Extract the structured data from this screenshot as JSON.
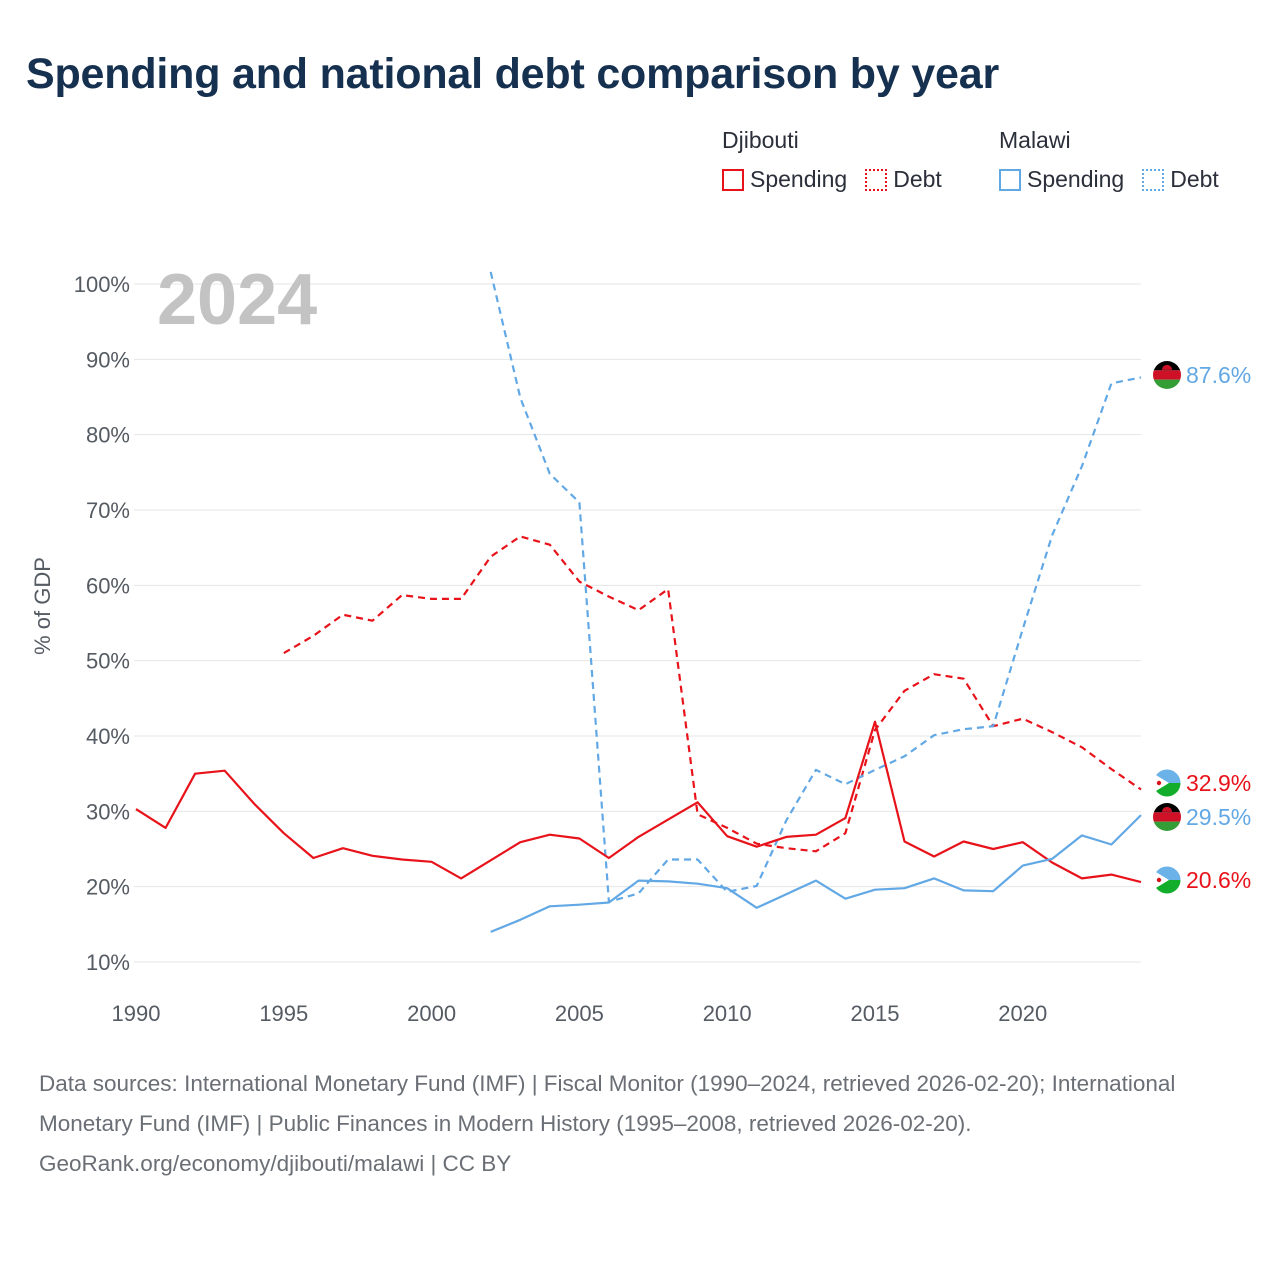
{
  "title": "Spending and national debt comparison by year",
  "legend": [
    {
      "country": "Djibouti",
      "color": "#e8131a",
      "items": [
        {
          "label": "Spending",
          "style": "solid"
        },
        {
          "label": "Debt",
          "style": "dotted"
        }
      ]
    },
    {
      "country": "Malawi",
      "color": "#62a8e5",
      "items": [
        {
          "label": "Spending",
          "style": "solid"
        },
        {
          "label": "Debt",
          "style": "dotted"
        }
      ]
    }
  ],
  "chart_data": {
    "type": "line",
    "year_label": "2024",
    "ylabel": "% of GDP",
    "xlabel": "",
    "xlim": [
      1990,
      2024
    ],
    "ylim": [
      10,
      100
    ],
    "x_ticks": [
      1990,
      1995,
      2000,
      2005,
      2010,
      2015,
      2020
    ],
    "y_ticks": [
      10,
      20,
      30,
      40,
      50,
      60,
      70,
      80,
      90,
      100
    ],
    "y_tick_labels": [
      "10%",
      "20%",
      "30%",
      "40%",
      "50%",
      "60%",
      "70%",
      "80%",
      "90%",
      "100%"
    ],
    "series": [
      {
        "name": "Djibouti Spending",
        "country": "Djibouti",
        "kind": "spending",
        "color": "#e8131a",
        "dashed": false,
        "end_label": "20.6%",
        "x": [
          1990,
          1991,
          1992,
          1993,
          1994,
          1995,
          1996,
          1997,
          1998,
          1999,
          2000,
          2001,
          2002,
          2003,
          2004,
          2005,
          2006,
          2007,
          2008,
          2009,
          2010,
          2011,
          2012,
          2013,
          2014,
          2015,
          2016,
          2017,
          2018,
          2019,
          2020,
          2021,
          2022,
          2023,
          2024
        ],
        "values": [
          30.3,
          27.8,
          35,
          35.4,
          31,
          27.1,
          23.8,
          25.1,
          24.1,
          23.6,
          23.3,
          21.1,
          23.5,
          25.9,
          26.9,
          26.4,
          23.8,
          26.6,
          28.9,
          31.2,
          26.7,
          25.3,
          26.6,
          26.9,
          29.1,
          41.9,
          26,
          24,
          26,
          25,
          25.9,
          23.2,
          21.1,
          21.6,
          20.6
        ]
      },
      {
        "name": "Djibouti Debt",
        "country": "Djibouti",
        "kind": "debt",
        "color": "#e8131a",
        "dashed": true,
        "end_label": "32.9%",
        "x": [
          1995,
          1996,
          1997,
          1998,
          1999,
          2000,
          2001,
          2002,
          2003,
          2004,
          2005,
          2006,
          2007,
          2008,
          2009,
          2010,
          2011,
          2012,
          2013,
          2014,
          2015,
          2016,
          2017,
          2018,
          2019,
          2020,
          2021,
          2022,
          2023,
          2024
        ],
        "values": [
          51,
          53.3,
          56.1,
          55.3,
          58.7,
          58.2,
          58.2,
          63.8,
          66.5,
          65.4,
          60.5,
          58.5,
          56.7,
          59.5,
          29.6,
          27.8,
          25.7,
          25.1,
          24.7,
          27.1,
          40.8,
          46,
          48.2,
          47.6,
          41.3,
          42.3,
          40.5,
          38.5,
          35.6,
          32.9
        ]
      },
      {
        "name": "Malawi Spending",
        "country": "Malawi",
        "kind": "spending",
        "color": "#62a8e5",
        "dashed": false,
        "end_label": "29.5%",
        "x": [
          2002,
          2003,
          2004,
          2005,
          2006,
          2007,
          2008,
          2009,
          2010,
          2011,
          2012,
          2013,
          2014,
          2015,
          2016,
          2017,
          2018,
          2019,
          2020,
          2021,
          2022,
          2023,
          2024
        ],
        "values": [
          14,
          15.6,
          17.4,
          17.6,
          17.9,
          20.8,
          20.7,
          20.4,
          19.8,
          17.2,
          19,
          20.8,
          18.4,
          19.6,
          19.8,
          21.1,
          19.5,
          19.4,
          22.8,
          23.7,
          26.8,
          25.6,
          29.5
        ]
      },
      {
        "name": "Malawi Debt",
        "country": "Malawi",
        "kind": "debt",
        "color": "#62a8e5",
        "dashed": true,
        "end_label": "87.6%",
        "x": [
          2002,
          2003,
          2004,
          2005,
          2006,
          2007,
          2008,
          2009,
          2010,
          2011,
          2012,
          2013,
          2014,
          2015,
          2016,
          2017,
          2018,
          2019,
          2020,
          2021,
          2022,
          2023,
          2024
        ],
        "values": [
          101.6,
          84.9,
          74.8,
          71,
          18,
          19.1,
          23.6,
          23.6,
          19.3,
          20.1,
          28.8,
          35.5,
          33.6,
          35.5,
          37.3,
          40.1,
          40.9,
          41.3,
          54.2,
          66.7,
          75.8,
          86.8,
          87.6
        ]
      }
    ]
  },
  "footer": {
    "sources": "Data sources: International Monetary Fund (IMF) | Fiscal Monitor (1990–2024, retrieved 2026-02-20); International Monetary Fund (IMF) | Public Finances in Modern History (1995–2008, retrieved 2026-02-20).",
    "credit": "GeoRank.org/economy/djibouti/malawi | CC BY"
  }
}
